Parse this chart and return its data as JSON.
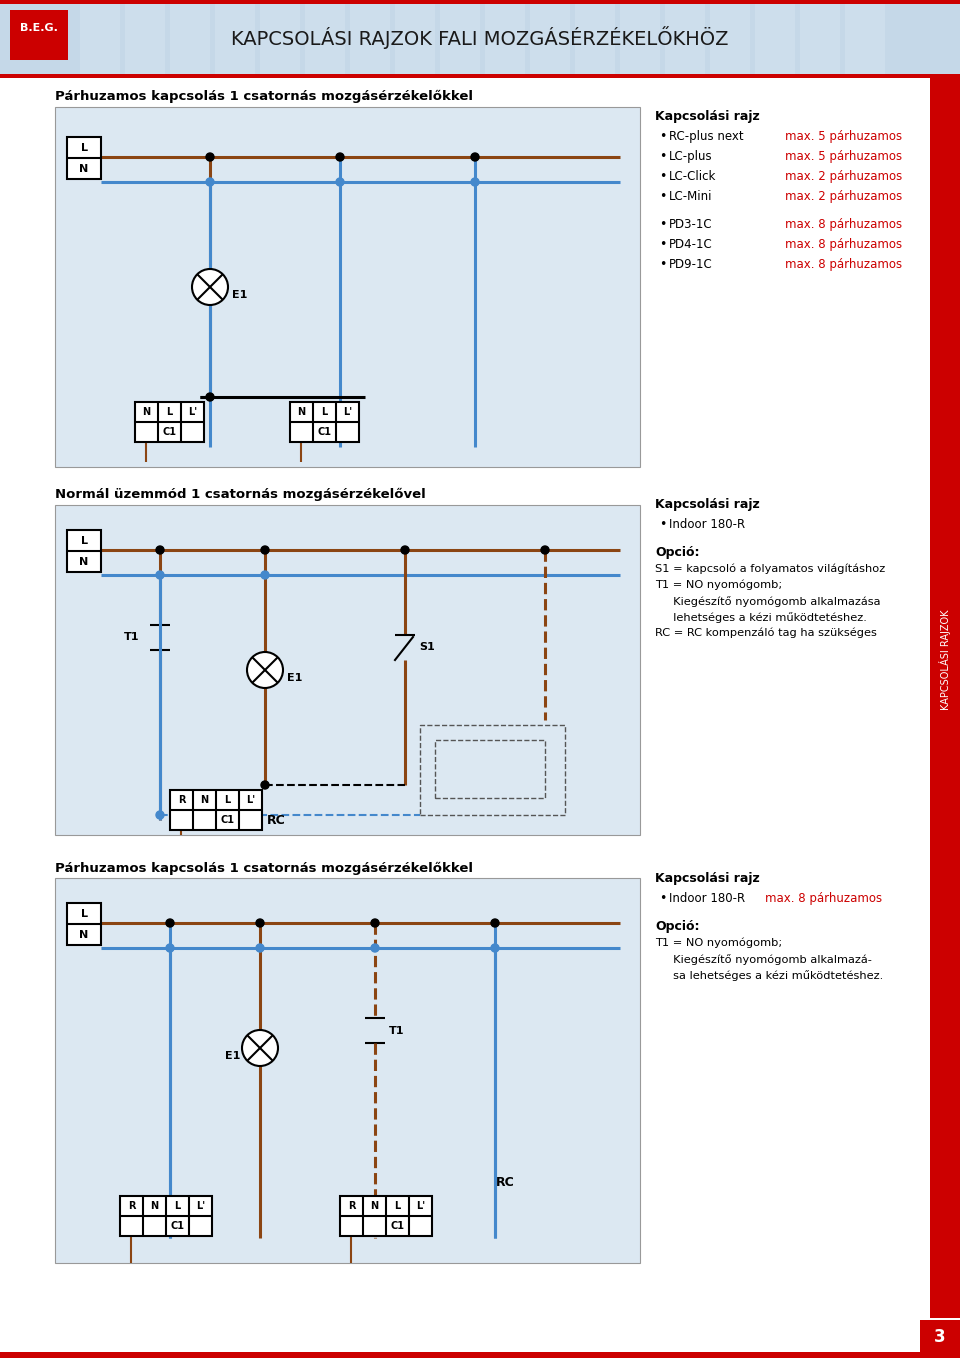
{
  "title": "KAPCSOLÁSI RAJZOK FALI MOZGÁSÉRZÉKELŐKHÖZ",
  "bg_color": "#ffffff",
  "diagram_bg": "#dce8f2",
  "red_color": "#cc0000",
  "brown": "#8B4513",
  "blue_wire": "#4488cc",
  "dark": "#1a1a1a",
  "section1_title": "Párhuzamos kapcsolás 1 csatornás mozgásérzékelőkkel",
  "section1_right_title": "Kapcsolási rajz",
  "section1_bullets_black": [
    "RC-plus next",
    "LC-plus",
    "LC-Click",
    "LC-Mini",
    "PD3-1C",
    "PD4-1C",
    "PD9-1C"
  ],
  "section1_bullets_red": [
    "max. 5 párhuzamos",
    "max. 5 párhuzamos",
    "max. 2 párhuzamos",
    "max. 2 párhuzamos",
    "max. 8 párhuzamos",
    "max. 8 párhuzamos",
    "max. 8 párhuzamos"
  ],
  "section2_title": "Normál üzemmód 1 csatornás mozgásérzékelővel",
  "section2_right_title": "Kapcsolási rajz",
  "section2_bullet": "Indoor 180-R",
  "section2_opcion_title": "Opció:",
  "section2_opcion_lines": [
    "S1 = kapcsoló a folyamatos világításhoz",
    "T1 = NO nyomógomb;",
    "     Kiegészítő nyomógomb alkalmazása",
    "     lehetséges a kézi működtetéshez.",
    "RC = RC kompenzáló tag ha szükséges"
  ],
  "section3_title": "Párhuzamos kapcsolás 1 csatornás mozgásérzékelőkkel",
  "section3_right_title": "Kapcsolási rajz",
  "section3_bullet_black": "Indoor 180-R",
  "section3_bullet_red": "max. 8 párhuzamos",
  "section3_opcion_title": "Opció:",
  "section3_opcion_lines": [
    "T1 = NO nyomógomb;",
    "     Kiegészítő nyomógomb alkalmazá-",
    "     sa lehetséges a kézi működtetéshez."
  ],
  "page_number": "3"
}
